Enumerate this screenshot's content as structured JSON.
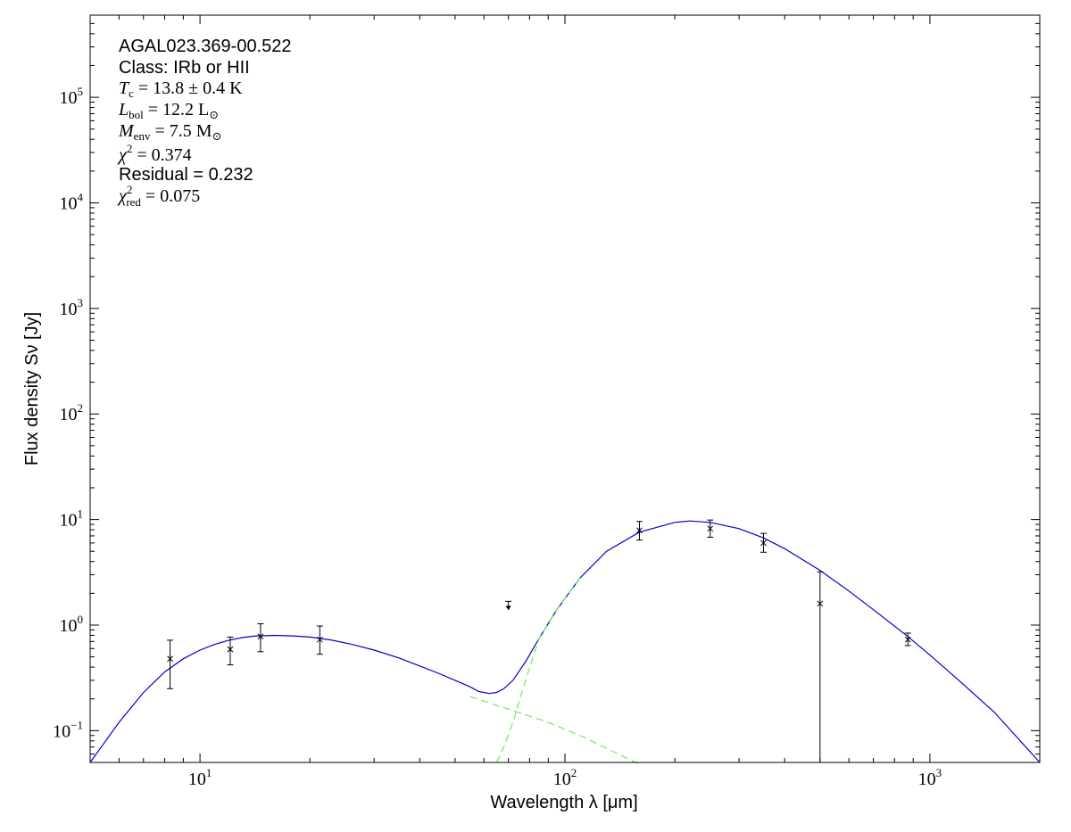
{
  "chart_data": {
    "type": "scatter",
    "x_scale": "log",
    "y_scale": "log",
    "xlim": [
      5,
      2000
    ],
    "ylim": [
      0.05,
      600000
    ],
    "grid": false,
    "xlabel": "Wavelength λ [μm]",
    "ylabel": "Flux density Sν [Jy]",
    "x_ticks": [
      {
        "value": 10,
        "base": "10",
        "exp": "1"
      },
      {
        "value": 100,
        "base": "10",
        "exp": "2"
      },
      {
        "value": 1000,
        "base": "10",
        "exp": "3"
      }
    ],
    "y_ticks": [
      {
        "value": 0.1,
        "base": "10",
        "exp": "−1"
      },
      {
        "value": 1,
        "base": "10",
        "exp": "0"
      },
      {
        "value": 10,
        "base": "10",
        "exp": "1"
      },
      {
        "value": 100,
        "base": "10",
        "exp": "2"
      },
      {
        "value": 1000,
        "base": "10",
        "exp": "3"
      },
      {
        "value": 10000,
        "base": "10",
        "exp": "4"
      },
      {
        "value": 100000,
        "base": "10",
        "exp": "5"
      }
    ],
    "annotations": {
      "source": "AGAL023.369-00.522",
      "class_line": "Class: IRb or HII",
      "tc": {
        "sym": "T",
        "sub": "c",
        "rest": " = 13.8 ± 0.4 K"
      },
      "lbol": {
        "sym": "L",
        "sub": "bol",
        "rest": " = 12.2 L",
        "sunsub": "⊙"
      },
      "menv": {
        "sym": "M",
        "sub": "env",
        "rest": " = 7.5 M",
        "sunsub": "⊙"
      },
      "chi2": {
        "sym": "χ",
        "sup": "2",
        "rest": " = 0.374"
      },
      "residual": "Residual = 0.232",
      "chi2red": {
        "sym": "χ",
        "sup": "2",
        "sub": "red",
        "rest": " = 0.075"
      }
    },
    "measurements": [
      {
        "x": 8.28,
        "y": 0.48,
        "lo": 0.25,
        "hi": 0.72
      },
      {
        "x": 12.1,
        "y": 0.59,
        "lo": 0.42,
        "hi": 0.77
      },
      {
        "x": 14.65,
        "y": 0.78,
        "lo": 0.56,
        "hi": 1.03
      },
      {
        "x": 21.3,
        "y": 0.73,
        "lo": 0.53,
        "hi": 0.98
      },
      {
        "x": 160,
        "y": 7.9,
        "lo": 6.4,
        "hi": 9.6
      },
      {
        "x": 250,
        "y": 8.2,
        "lo": 6.8,
        "hi": 9.9
      },
      {
        "x": 350,
        "y": 6.0,
        "lo": 4.9,
        "hi": 7.4
      },
      {
        "x": 500,
        "y": 1.6,
        "lo": 0.05,
        "hi": 3.2
      },
      {
        "x": 870,
        "y": 0.73,
        "lo": 0.64,
        "hi": 0.84
      }
    ],
    "upper_limits": [
      {
        "x": 70,
        "y": 1.68
      }
    ],
    "series": [
      {
        "role": "total-fit",
        "color": "#0000cc",
        "style": "solid",
        "points": [
          [
            5,
            0.05
          ],
          [
            6,
            0.12
          ],
          [
            7,
            0.23
          ],
          [
            8,
            0.36
          ],
          [
            9,
            0.48
          ],
          [
            10,
            0.58
          ],
          [
            11,
            0.66
          ],
          [
            12,
            0.72
          ],
          [
            13,
            0.76
          ],
          [
            14,
            0.785
          ],
          [
            16,
            0.8
          ],
          [
            18,
            0.79
          ],
          [
            20,
            0.77
          ],
          [
            23,
            0.72
          ],
          [
            26,
            0.66
          ],
          [
            30,
            0.58
          ],
          [
            35,
            0.49
          ],
          [
            40,
            0.41
          ],
          [
            45,
            0.35
          ],
          [
            50,
            0.3
          ],
          [
            55,
            0.26
          ],
          [
            58,
            0.235
          ],
          [
            62,
            0.225
          ],
          [
            65,
            0.23
          ],
          [
            68,
            0.25
          ],
          [
            72,
            0.3
          ],
          [
            78,
            0.45
          ],
          [
            85,
            0.75
          ],
          [
            95,
            1.4
          ],
          [
            110,
            2.8
          ],
          [
            130,
            5.0
          ],
          [
            160,
            7.6
          ],
          [
            200,
            9.4
          ],
          [
            220,
            9.7
          ],
          [
            250,
            9.4
          ],
          [
            300,
            8.2
          ],
          [
            350,
            6.7
          ],
          [
            400,
            5.3
          ],
          [
            500,
            3.3
          ],
          [
            600,
            2.1
          ],
          [
            700,
            1.4
          ],
          [
            870,
            0.78
          ],
          [
            1000,
            0.52
          ],
          [
            1200,
            0.3
          ],
          [
            1500,
            0.15
          ],
          [
            2000,
            0.05
          ]
        ]
      },
      {
        "role": "warm-component",
        "color": "#66ee55",
        "style": "dashed",
        "points": [
          [
            55,
            0.21
          ],
          [
            70,
            0.16
          ],
          [
            90,
            0.12
          ],
          [
            110,
            0.09
          ],
          [
            140,
            0.06
          ],
          [
            160,
            0.048
          ]
        ]
      },
      {
        "role": "cold-component",
        "color": "#66ee55",
        "style": "dashed",
        "points": [
          [
            65,
            0.05
          ],
          [
            68,
            0.07
          ],
          [
            72,
            0.12
          ],
          [
            78,
            0.3
          ],
          [
            85,
            0.75
          ],
          [
            95,
            1.4
          ],
          [
            110,
            2.8
          ]
        ]
      }
    ]
  }
}
